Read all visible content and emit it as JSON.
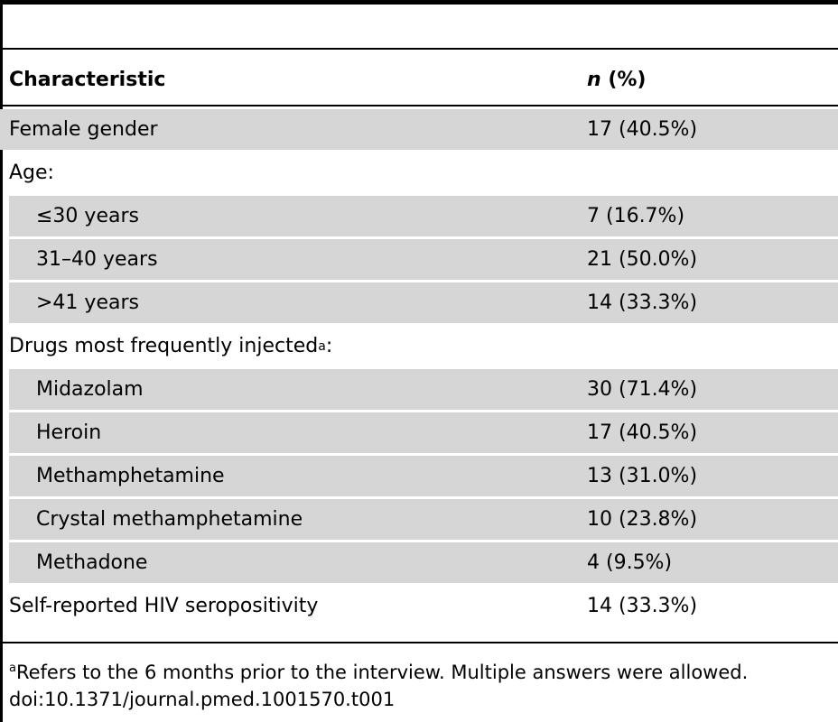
{
  "table": {
    "headers": {
      "characteristic": "Characteristic",
      "n_italic": "n",
      "n_rest": " (%)"
    },
    "rows": [
      {
        "label": "Female gender",
        "value": "17 (40.5%)",
        "shaded": true,
        "indented": false,
        "sup": ""
      },
      {
        "label": "Age:",
        "value": "",
        "shaded": false,
        "indented": false,
        "sup": ""
      },
      {
        "label": "≤30 years",
        "value": "7 (16.7%)",
        "shaded": true,
        "indented": true,
        "sup": ""
      },
      {
        "label": "31–40 years",
        "value": "21 (50.0%)",
        "shaded": true,
        "indented": true,
        "sup": ""
      },
      {
        "label": ">41 years",
        "value": "14 (33.3%)",
        "shaded": true,
        "indented": true,
        "sup": ""
      },
      {
        "label": "Drugs most frequently injected",
        "value": "",
        "shaded": false,
        "indented": false,
        "sup": "a",
        "suffix": ":"
      },
      {
        "label": "Midazolam",
        "value": "30 (71.4%)",
        "shaded": true,
        "indented": true,
        "sup": ""
      },
      {
        "label": "Heroin",
        "value": "17 (40.5%)",
        "shaded": true,
        "indented": true,
        "sup": ""
      },
      {
        "label": "Methamphetamine",
        "value": "13 (31.0%)",
        "shaded": true,
        "indented": true,
        "sup": ""
      },
      {
        "label": "Crystal methamphetamine",
        "value": "10 (23.8%)",
        "shaded": true,
        "indented": true,
        "sup": ""
      },
      {
        "label": "Methadone",
        "value": "4 (9.5%)",
        "shaded": true,
        "indented": true,
        "sup": ""
      },
      {
        "label": "Self-reported HIV seropositivity",
        "value": "14 (33.3%)",
        "shaded": false,
        "indented": false,
        "sup": ""
      }
    ]
  },
  "footnote": {
    "marker": "a",
    "text": "Refers to the 6 months prior to the interview. Multiple answers were allowed.",
    "doi": "doi:10.1371/journal.pmed.1001570.t001"
  }
}
